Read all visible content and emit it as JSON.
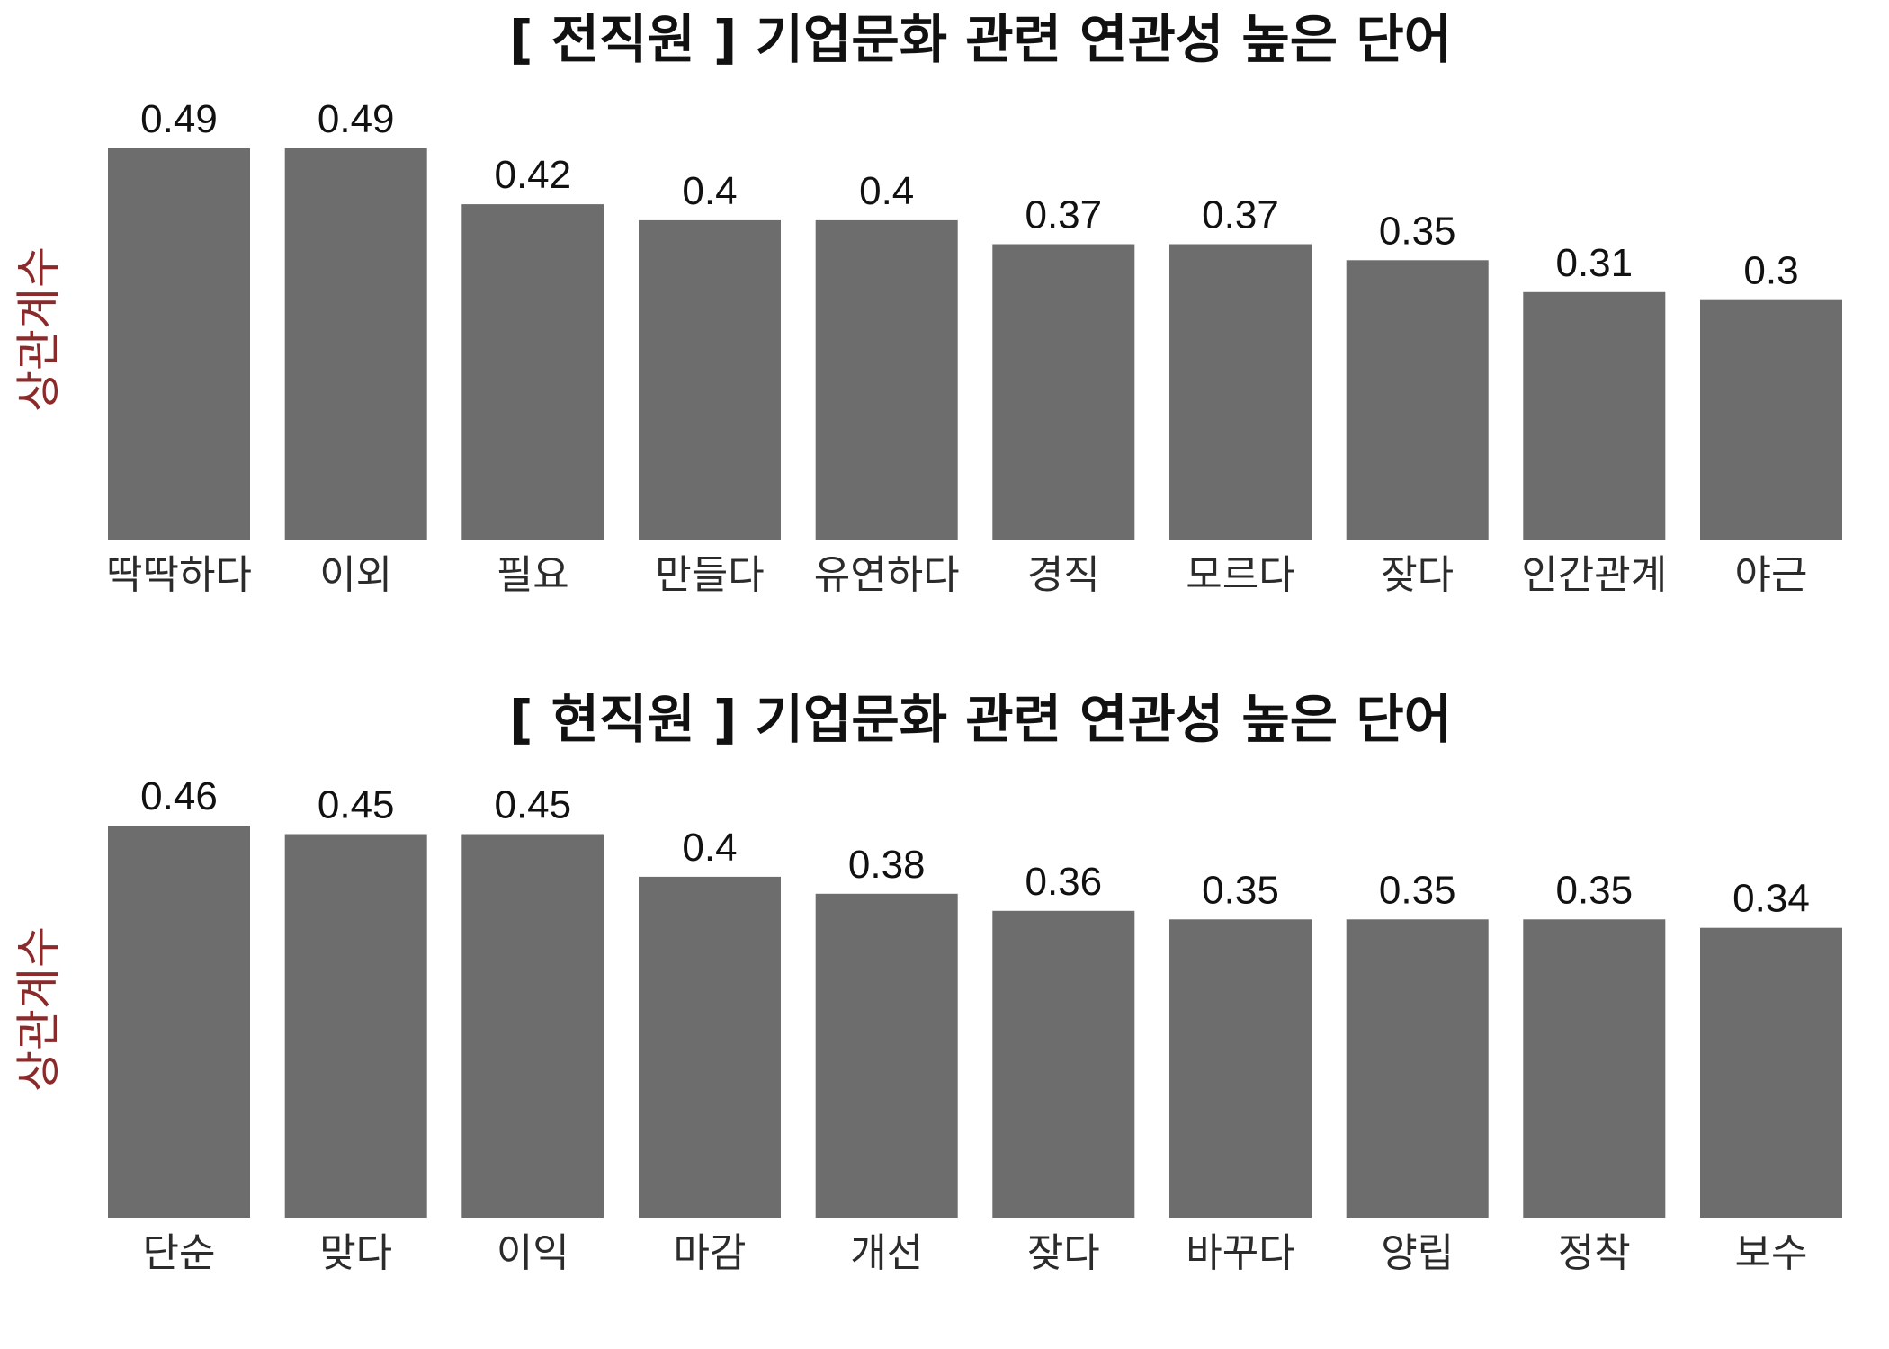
{
  "colors": {
    "bar": "#6d6d6d",
    "ylabel": "#8b2a2a",
    "title": "#111111",
    "tick": "#2b2b2b",
    "value": "#111111"
  },
  "chart_data": [
    {
      "type": "bar",
      "title": "[ 전직원 ] 기업문화 관련 연관성 높은 단어",
      "ylabel": "상관계수",
      "xlabel": "",
      "categories": [
        "딱딱하다",
        "이외",
        "필요",
        "만들다",
        "유연하다",
        "경직",
        "모르다",
        "잦다",
        "인간관계",
        "야근"
      ],
      "values": [
        0.49,
        0.49,
        0.42,
        0.4,
        0.4,
        0.37,
        0.37,
        0.35,
        0.31,
        0.3
      ],
      "ylim": [
        0,
        0.49
      ],
      "grid": false,
      "legend": "none"
    },
    {
      "type": "bar",
      "title": "[ 현직원 ] 기업문화 관련 연관성 높은 단어",
      "ylabel": "상관계수",
      "xlabel": "",
      "categories": [
        "단순",
        "맞다",
        "이익",
        "마감",
        "개선",
        "잦다",
        "바꾸다",
        "양립",
        "정착",
        "보수"
      ],
      "values": [
        0.46,
        0.45,
        0.45,
        0.4,
        0.38,
        0.36,
        0.35,
        0.35,
        0.35,
        0.34
      ],
      "ylim": [
        0,
        0.46
      ],
      "grid": false,
      "legend": "none"
    }
  ]
}
